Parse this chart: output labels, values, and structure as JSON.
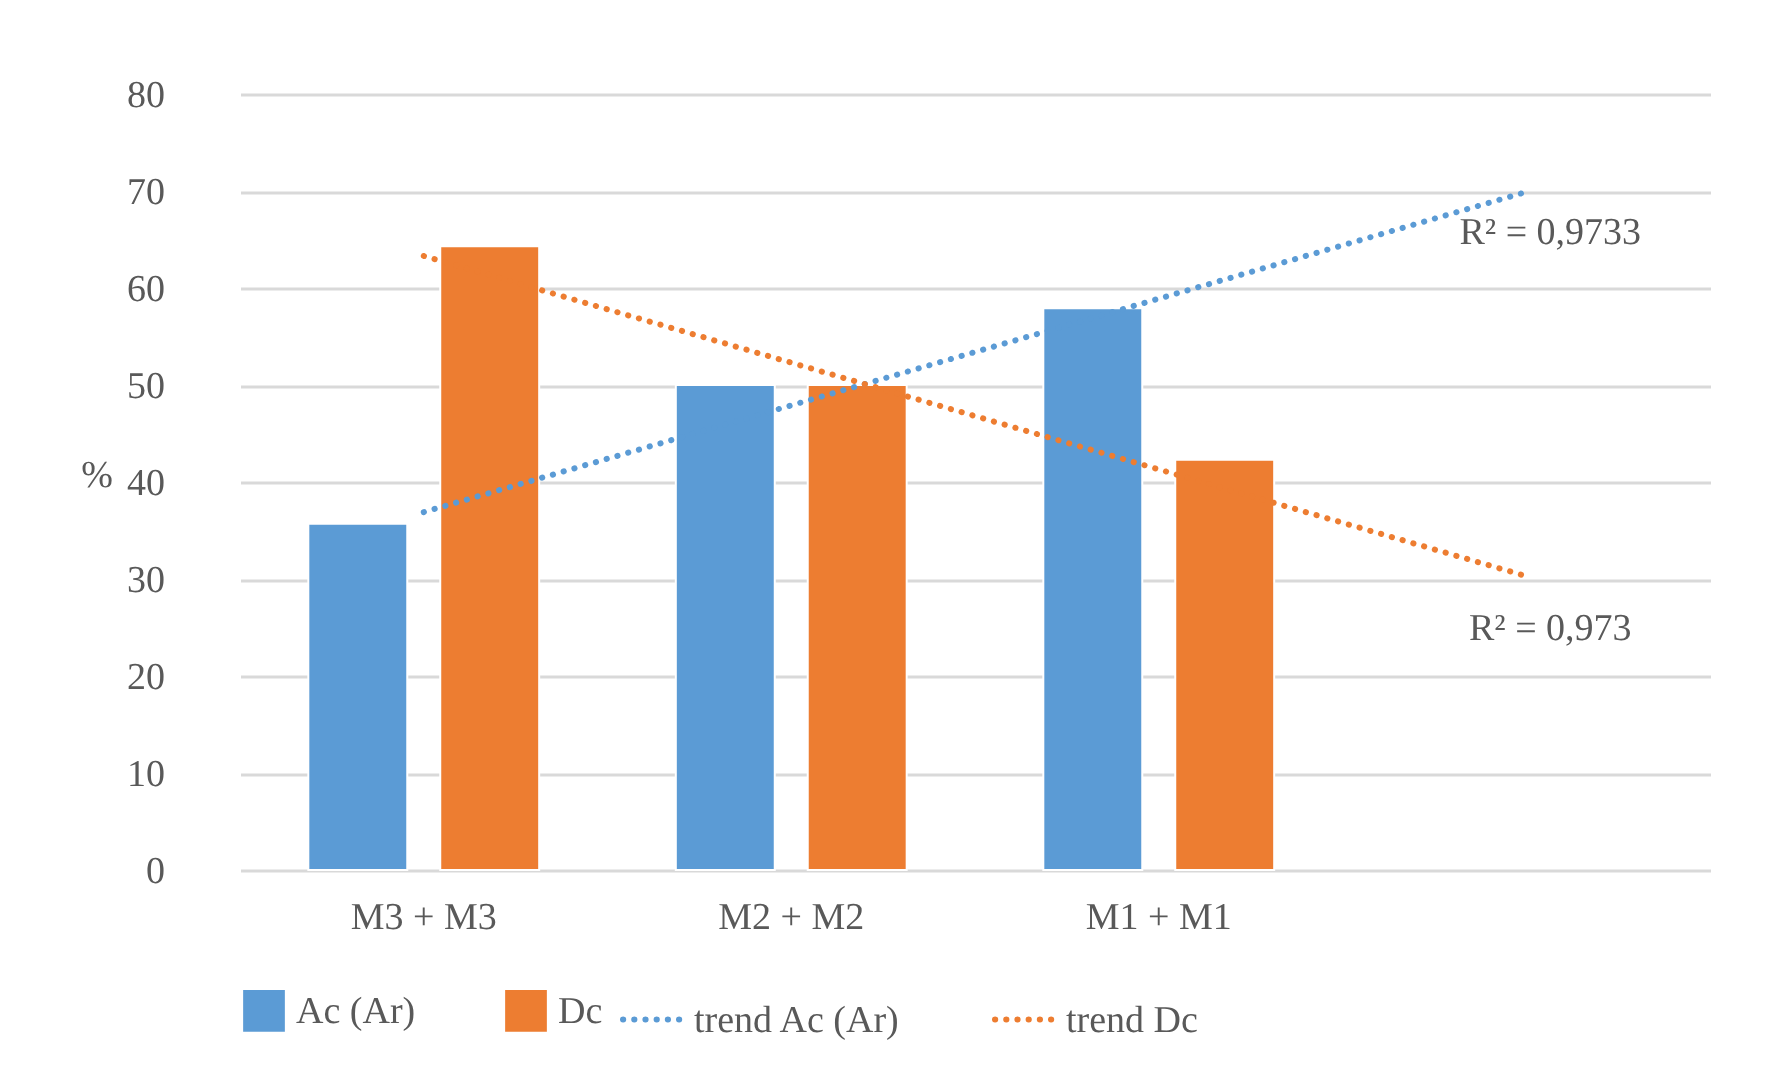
{
  "chart_data": {
    "type": "bar",
    "ylabel": "%",
    "categories": [
      "M3 + M3",
      "M2 + M2",
      "M1 + M1",
      null
    ],
    "series": [
      {
        "name": "Ac (Ar)",
        "color": "#5b9bd5",
        "values": [
          35.7,
          50,
          57.9,
          null
        ]
      },
      {
        "name": "Dc",
        "color": "#ed7d31",
        "values": [
          64.3,
          50,
          42.3,
          null
        ]
      },
      {
        "name": "trend Ac (Ar)",
        "type": "line",
        "line_style": "dotted",
        "color": "#5b9bd5",
        "values": [
          36.9,
          47.9,
          58.9,
          69.9
        ]
      },
      {
        "name": "trend Dc",
        "type": "line",
        "line_style": "dotted",
        "color": "#ed7d31",
        "values": [
          63.3,
          52.3,
          41.3,
          30.3
        ]
      }
    ],
    "annotations": [
      "R² = 0,9733",
      "R² = 0,973"
    ],
    "ylim": [
      0,
      80
    ],
    "yticks": [
      0,
      10,
      20,
      30,
      40,
      50,
      60,
      70,
      80
    ],
    "grid": "y",
    "legend": "bottom"
  }
}
